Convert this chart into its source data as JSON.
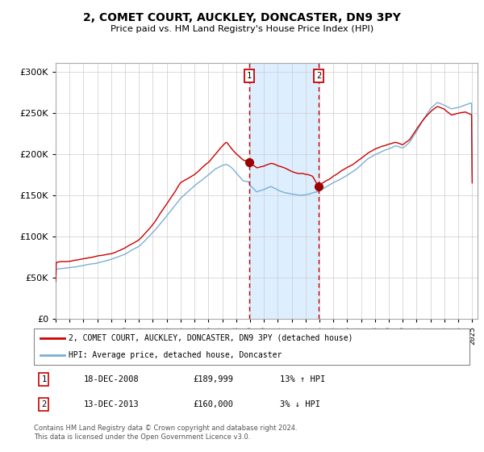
{
  "title": "2, COMET COURT, AUCKLEY, DONCASTER, DN9 3PY",
  "subtitle": "Price paid vs. HM Land Registry's House Price Index (HPI)",
  "sale1_price": 189999,
  "sale2_price": 160000,
  "legend_line1": "2, COMET COURT, AUCKLEY, DONCASTER, DN9 3PY (detached house)",
  "legend_line2": "HPI: Average price, detached house, Doncaster",
  "table_row1": [
    "1",
    "18-DEC-2008",
    "£189,999",
    "13% ↑ HPI"
  ],
  "table_row2": [
    "2",
    "13-DEC-2013",
    "£160,000",
    "3% ↓ HPI"
  ],
  "footnote": "Contains HM Land Registry data © Crown copyright and database right 2024.\nThis data is licensed under the Open Government Licence v3.0.",
  "line_color_red": "#cc0000",
  "line_color_blue": "#7ab0d4",
  "shading_color": "#ddeeff",
  "point_color": "#990000"
}
